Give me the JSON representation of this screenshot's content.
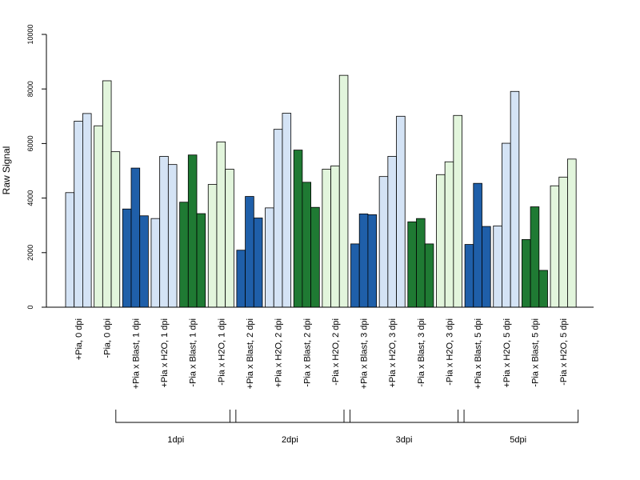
{
  "chart_data": {
    "type": "bar",
    "ylabel": "Raw Signal",
    "ylim": [
      0,
      10000
    ],
    "yticks": [
      "0",
      "2000",
      "4000",
      "6000",
      "8000",
      "10000"
    ],
    "colors": {
      "pia_h2o": "#d4e3f5",
      "mock_h2o": "#e2f5dc",
      "pia_blast": "#1f5fa9",
      "mock_blast": "#1f7a33",
      "outline": "#000000"
    },
    "categories": [
      {
        "label": "+Pia, 0 dpi",
        "color": "pia_h2o",
        "values": [
          4200,
          6820,
          7100
        ]
      },
      {
        "label": "-Pia, 0 dpi",
        "color": "mock_h2o",
        "values": [
          6650,
          8300,
          5700
        ]
      },
      {
        "label": "+Pia x Blast, 1 dpi",
        "color": "pia_blast",
        "values": [
          3600,
          5100,
          3350
        ]
      },
      {
        "label": "+Pia x H2O, 1 dpi",
        "color": "pia_h2o",
        "values": [
          3250,
          5530,
          5230
        ]
      },
      {
        "label": "-Pia x Blast, 1 dpi",
        "color": "mock_blast",
        "values": [
          3850,
          5580,
          3430
        ]
      },
      {
        "label": "-Pia x H2O, 1 dpi",
        "color": "mock_h2o",
        "values": [
          4500,
          6060,
          5060
        ]
      },
      {
        "label": "+Pia x Blast, 2 dpi",
        "color": "pia_blast",
        "values": [
          2090,
          4060,
          3270
        ]
      },
      {
        "label": "+Pia x H2O, 2 dpi",
        "color": "pia_h2o",
        "values": [
          3640,
          6520,
          7110
        ]
      },
      {
        "label": "-Pia x Blast, 2 dpi",
        "color": "mock_blast",
        "values": [
          5760,
          4580,
          3660
        ]
      },
      {
        "label": "-Pia x H2O, 2 dpi",
        "color": "mock_h2o",
        "values": [
          5060,
          5180,
          8500
        ]
      },
      {
        "label": "+Pia x Blast, 3 dpi",
        "color": "pia_blast",
        "values": [
          2320,
          3420,
          3390
        ]
      },
      {
        "label": "+Pia x H2O, 3 dpi",
        "color": "pia_h2o",
        "values": [
          4790,
          5530,
          7000
        ]
      },
      {
        "label": "-Pia x Blast, 3 dpi",
        "color": "mock_blast",
        "values": [
          3130,
          3250,
          2320
        ]
      },
      {
        "label": "-Pia x H2O, 3 dpi",
        "color": "mock_h2o",
        "values": [
          4860,
          5330,
          7030
        ]
      },
      {
        "label": "+Pia x Blast, 5 dpi",
        "color": "pia_blast",
        "values": [
          2300,
          4540,
          2960
        ]
      },
      {
        "label": "+Pia x H2O, 5 dpi",
        "color": "pia_h2o",
        "values": [
          2980,
          6010,
          7910
        ]
      },
      {
        "label": "-Pia x Blast, 5 dpi",
        "color": "mock_blast",
        "values": [
          2480,
          3680,
          1350
        ]
      },
      {
        "label": "-Pia x H2O, 5 dpi",
        "color": "mock_h2o",
        "values": [
          4450,
          4770,
          5430
        ]
      }
    ],
    "groups": [
      {
        "label": "1dpi",
        "from": 2,
        "to": 5
      },
      {
        "label": "2dpi",
        "from": 6,
        "to": 9
      },
      {
        "label": "3dpi",
        "from": 10,
        "to": 13
      },
      {
        "label": "5dpi",
        "from": 14,
        "to": 17
      }
    ]
  }
}
